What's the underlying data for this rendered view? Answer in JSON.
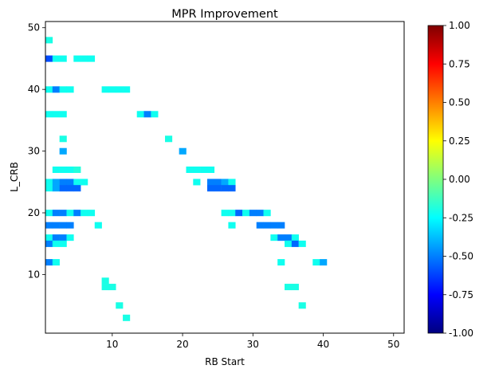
{
  "chart_data": {
    "type": "heatmap",
    "title": "MPR Improvement",
    "xlabel": "RB Start",
    "ylabel": "L_CRB",
    "xlim": [
      0.5,
      51.5
    ],
    "ylim": [
      0.5,
      51
    ],
    "xticks": [
      10,
      20,
      30,
      40,
      50
    ],
    "yticks": [
      10,
      20,
      30,
      40,
      50
    ],
    "grid": false,
    "colormap": "jet",
    "color_range": [
      -1.0,
      1.0
    ],
    "colorbar_ticks": [
      "-1.00",
      "-0.75",
      "-0.50",
      "-0.25",
      "0.00",
      "0.25",
      "0.50",
      "0.75",
      "1.00"
    ],
    "colormap_stops": [
      "#00007f",
      "#0000ff",
      "#007fff",
      "#00ffff",
      "#7fff7f",
      "#ffff00",
      "#ff7f00",
      "#ff0000",
      "#7f0000"
    ],
    "cells": [
      {
        "x": 1,
        "y": 48,
        "v": -0.2
      },
      {
        "x": 1,
        "y": 45,
        "v": -0.6
      },
      {
        "x": 2,
        "y": 45,
        "v": -0.22
      },
      {
        "x": 3,
        "y": 45,
        "v": -0.22
      },
      {
        "x": 5,
        "y": 45,
        "v": -0.22
      },
      {
        "x": 6,
        "y": 45,
        "v": -0.22
      },
      {
        "x": 7,
        "y": 45,
        "v": -0.22
      },
      {
        "x": 1,
        "y": 40,
        "v": -0.22
      },
      {
        "x": 2,
        "y": 40,
        "v": -0.5
      },
      {
        "x": 3,
        "y": 40,
        "v": -0.22
      },
      {
        "x": 4,
        "y": 40,
        "v": -0.22
      },
      {
        "x": 9,
        "y": 40,
        "v": -0.22
      },
      {
        "x": 10,
        "y": 40,
        "v": -0.22
      },
      {
        "x": 11,
        "y": 40,
        "v": -0.22
      },
      {
        "x": 12,
        "y": 40,
        "v": -0.22
      },
      {
        "x": 1,
        "y": 36,
        "v": -0.22
      },
      {
        "x": 2,
        "y": 36,
        "v": -0.22
      },
      {
        "x": 3,
        "y": 36,
        "v": -0.22
      },
      {
        "x": 14,
        "y": 36,
        "v": -0.22
      },
      {
        "x": 15,
        "y": 36,
        "v": -0.5
      },
      {
        "x": 16,
        "y": 36,
        "v": -0.22
      },
      {
        "x": 3,
        "y": 32,
        "v": -0.2
      },
      {
        "x": 18,
        "y": 32,
        "v": -0.2
      },
      {
        "x": 3,
        "y": 30,
        "v": -0.42
      },
      {
        "x": 20,
        "y": 30,
        "v": -0.42
      },
      {
        "x": 2,
        "y": 27,
        "v": -0.22
      },
      {
        "x": 3,
        "y": 27,
        "v": -0.22
      },
      {
        "x": 4,
        "y": 27,
        "v": -0.22
      },
      {
        "x": 5,
        "y": 27,
        "v": -0.18
      },
      {
        "x": 21,
        "y": 27,
        "v": -0.22
      },
      {
        "x": 22,
        "y": 27,
        "v": -0.22
      },
      {
        "x": 23,
        "y": 27,
        "v": -0.22
      },
      {
        "x": 24,
        "y": 27,
        "v": -0.22
      },
      {
        "x": 1,
        "y": 25,
        "v": -0.22
      },
      {
        "x": 2,
        "y": 25,
        "v": -0.42
      },
      {
        "x": 3,
        "y": 25,
        "v": -0.5
      },
      {
        "x": 4,
        "y": 25,
        "v": -0.5
      },
      {
        "x": 5,
        "y": 25,
        "v": -0.22
      },
      {
        "x": 6,
        "y": 25,
        "v": -0.22
      },
      {
        "x": 22,
        "y": 25,
        "v": -0.22
      },
      {
        "x": 24,
        "y": 25,
        "v": -0.5
      },
      {
        "x": 25,
        "y": 25,
        "v": -0.5
      },
      {
        "x": 26,
        "y": 25,
        "v": -0.42
      },
      {
        "x": 27,
        "y": 25,
        "v": -0.22
      },
      {
        "x": 1,
        "y": 24,
        "v": -0.22
      },
      {
        "x": 2,
        "y": 24,
        "v": -0.42
      },
      {
        "x": 3,
        "y": 24,
        "v": -0.55
      },
      {
        "x": 4,
        "y": 24,
        "v": -0.55
      },
      {
        "x": 5,
        "y": 24,
        "v": -0.55
      },
      {
        "x": 24,
        "y": 24,
        "v": -0.55
      },
      {
        "x": 25,
        "y": 24,
        "v": -0.55
      },
      {
        "x": 26,
        "y": 24,
        "v": -0.55
      },
      {
        "x": 27,
        "y": 24,
        "v": -0.55
      },
      {
        "x": 1,
        "y": 20,
        "v": -0.22
      },
      {
        "x": 2,
        "y": 20,
        "v": -0.5
      },
      {
        "x": 3,
        "y": 20,
        "v": -0.5
      },
      {
        "x": 4,
        "y": 20,
        "v": -0.22
      },
      {
        "x": 5,
        "y": 20,
        "v": -0.5
      },
      {
        "x": 6,
        "y": 20,
        "v": -0.22
      },
      {
        "x": 7,
        "y": 20,
        "v": -0.22
      },
      {
        "x": 26,
        "y": 20,
        "v": -0.22
      },
      {
        "x": 27,
        "y": 20,
        "v": -0.22
      },
      {
        "x": 28,
        "y": 20,
        "v": -0.55
      },
      {
        "x": 29,
        "y": 20,
        "v": -0.22
      },
      {
        "x": 30,
        "y": 20,
        "v": -0.5
      },
      {
        "x": 31,
        "y": 20,
        "v": -0.5
      },
      {
        "x": 32,
        "y": 20,
        "v": -0.22
      },
      {
        "x": 1,
        "y": 18,
        "v": -0.5
      },
      {
        "x": 2,
        "y": 18,
        "v": -0.5
      },
      {
        "x": 3,
        "y": 18,
        "v": -0.5
      },
      {
        "x": 4,
        "y": 18,
        "v": -0.5
      },
      {
        "x": 8,
        "y": 18,
        "v": -0.22
      },
      {
        "x": 27,
        "y": 18,
        "v": -0.22
      },
      {
        "x": 31,
        "y": 18,
        "v": -0.5
      },
      {
        "x": 32,
        "y": 18,
        "v": -0.5
      },
      {
        "x": 33,
        "y": 18,
        "v": -0.5
      },
      {
        "x": 34,
        "y": 18,
        "v": -0.5
      },
      {
        "x": 1,
        "y": 16,
        "v": -0.22
      },
      {
        "x": 2,
        "y": 16,
        "v": -0.5
      },
      {
        "x": 3,
        "y": 16,
        "v": -0.5
      },
      {
        "x": 4,
        "y": 16,
        "v": -0.22
      },
      {
        "x": 33,
        "y": 16,
        "v": -0.22
      },
      {
        "x": 34,
        "y": 16,
        "v": -0.5
      },
      {
        "x": 35,
        "y": 16,
        "v": -0.5
      },
      {
        "x": 36,
        "y": 16,
        "v": -0.22
      },
      {
        "x": 1,
        "y": 15,
        "v": -0.5
      },
      {
        "x": 2,
        "y": 15,
        "v": -0.22
      },
      {
        "x": 3,
        "y": 15,
        "v": -0.22
      },
      {
        "x": 35,
        "y": 15,
        "v": -0.22
      },
      {
        "x": 36,
        "y": 15,
        "v": -0.55
      },
      {
        "x": 37,
        "y": 15,
        "v": -0.22
      },
      {
        "x": 1,
        "y": 12,
        "v": -0.5
      },
      {
        "x": 2,
        "y": 12,
        "v": -0.22
      },
      {
        "x": 34,
        "y": 12,
        "v": -0.22
      },
      {
        "x": 39,
        "y": 12,
        "v": -0.22
      },
      {
        "x": 40,
        "y": 12,
        "v": -0.42
      },
      {
        "x": 9,
        "y": 9,
        "v": -0.2
      },
      {
        "x": 9,
        "y": 8,
        "v": -0.2
      },
      {
        "x": 10,
        "y": 8,
        "v": -0.2
      },
      {
        "x": 35,
        "y": 8,
        "v": -0.2
      },
      {
        "x": 36,
        "y": 8,
        "v": -0.2
      },
      {
        "x": 11,
        "y": 5,
        "v": -0.2
      },
      {
        "x": 37,
        "y": 5,
        "v": -0.2
      },
      {
        "x": 12,
        "y": 3,
        "v": -0.2
      }
    ]
  }
}
